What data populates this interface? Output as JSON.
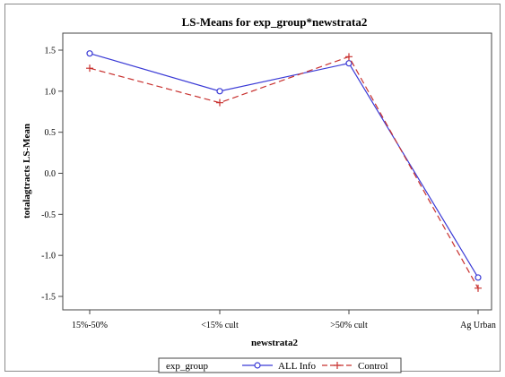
{
  "chart_data": {
    "type": "line",
    "title": "LS-Means for exp_group*newstrata2",
    "xlabel": "newstrata2",
    "ylabel": "totalagtracts LS-Mean",
    "categories": [
      "15%-50%",
      "<15% cult",
      ">50% cult",
      "Ag Urban"
    ],
    "yticks": [
      "1.5",
      "1.0",
      "0.5",
      "0.0",
      "-0.5",
      "-1.0",
      "-1.5"
    ],
    "ylim": [
      -1.5,
      1.5
    ],
    "grid": false,
    "legend": {
      "title": "exp_group",
      "placement": "bottom"
    },
    "series": [
      {
        "name": "ALL Info",
        "values": [
          1.46,
          1.0,
          1.34,
          -1.27
        ],
        "color": "#3a3ad6",
        "marker": "circle",
        "dash": "solid"
      },
      {
        "name": "Control",
        "values": [
          1.28,
          0.86,
          1.42,
          -1.4
        ],
        "color": "#c8312f",
        "marker": "plus",
        "dash": "dashed"
      }
    ]
  }
}
